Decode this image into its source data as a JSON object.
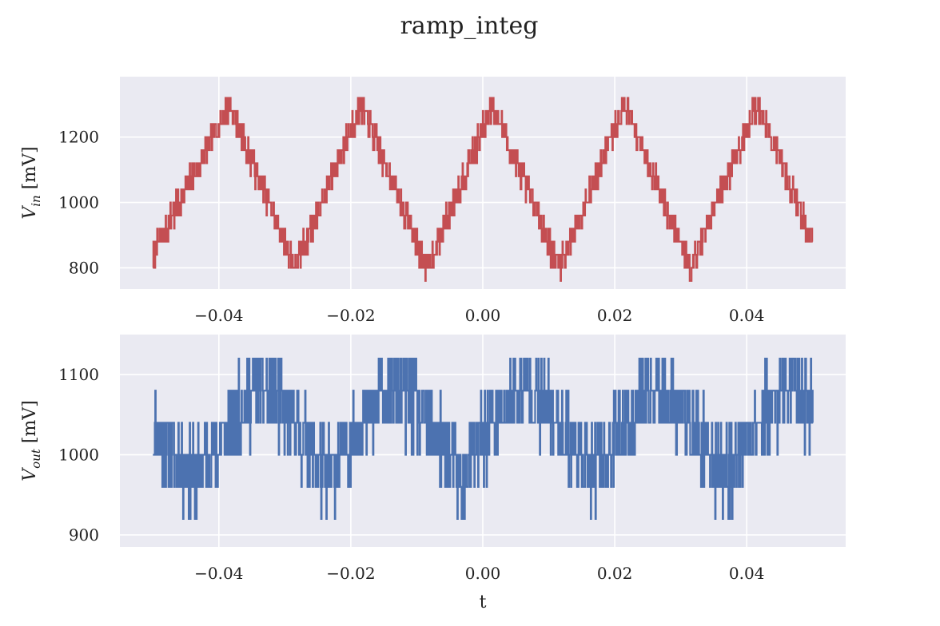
{
  "title": "ramp_integ",
  "chart_data": [
    {
      "type": "line",
      "name": "vin-panel",
      "ylabel_main": "V",
      "ylabel_sub": "in",
      "ylabel_unit": " [mV]",
      "xlabel": "",
      "xlim": [
        -0.055,
        0.055
      ],
      "ylim": [
        735,
        1385
      ],
      "xticks": [
        -0.04,
        -0.02,
        0.0,
        0.02,
        0.04
      ],
      "xtick_labels": [
        "−0.04",
        "−0.02",
        "0.00",
        "0.02",
        "0.04"
      ],
      "yticks": [
        800,
        1000,
        1200
      ],
      "ytick_labels": [
        "800",
        "1000",
        "1200"
      ],
      "grid": true,
      "color": "#c44e52",
      "series": [
        {
          "x": [
            -0.05,
            -0.0385,
            -0.0285,
            -0.0185,
            -0.0085,
            0.0015,
            0.0115,
            0.0215,
            0.0315,
            0.0415,
            0.05
          ],
          "values": [
            840,
            1300,
            800,
            1300,
            800,
            1300,
            800,
            1300,
            800,
            1300,
            880
          ]
        }
      ]
    },
    {
      "type": "line",
      "name": "vout-panel",
      "ylabel_main": "V",
      "ylabel_sub": "out",
      "ylabel_unit": " [mV]",
      "xlabel": "t",
      "xlim": [
        -0.055,
        0.055
      ],
      "ylim": [
        885,
        1150
      ],
      "xticks": [
        -0.04,
        -0.02,
        0.0,
        0.02,
        0.04
      ],
      "xtick_labels": [
        "−0.04",
        "−0.02",
        "0.00",
        "0.02",
        "0.04"
      ],
      "yticks": [
        900,
        1000,
        1100
      ],
      "ytick_labels": [
        "900",
        "1000",
        "1100"
      ],
      "grid": true,
      "color": "#4c72b0",
      "series": [
        {
          "x": [
            -0.05,
            -0.0435,
            -0.0385,
            -0.0335,
            -0.0285,
            -0.0235,
            -0.0185,
            -0.0135,
            -0.0085,
            -0.0035,
            0.0015,
            0.0065,
            0.0115,
            0.0165,
            0.0215,
            0.0265,
            0.0315,
            0.0365,
            0.0415,
            0.0465,
            0.05
          ],
          "values": [
            1030,
            970,
            1040,
            1085,
            1040,
            970,
            1040,
            1085,
            1040,
            970,
            1040,
            1085,
            1040,
            970,
            1040,
            1085,
            1040,
            970,
            1040,
            1085,
            1060
          ]
        }
      ]
    }
  ]
}
